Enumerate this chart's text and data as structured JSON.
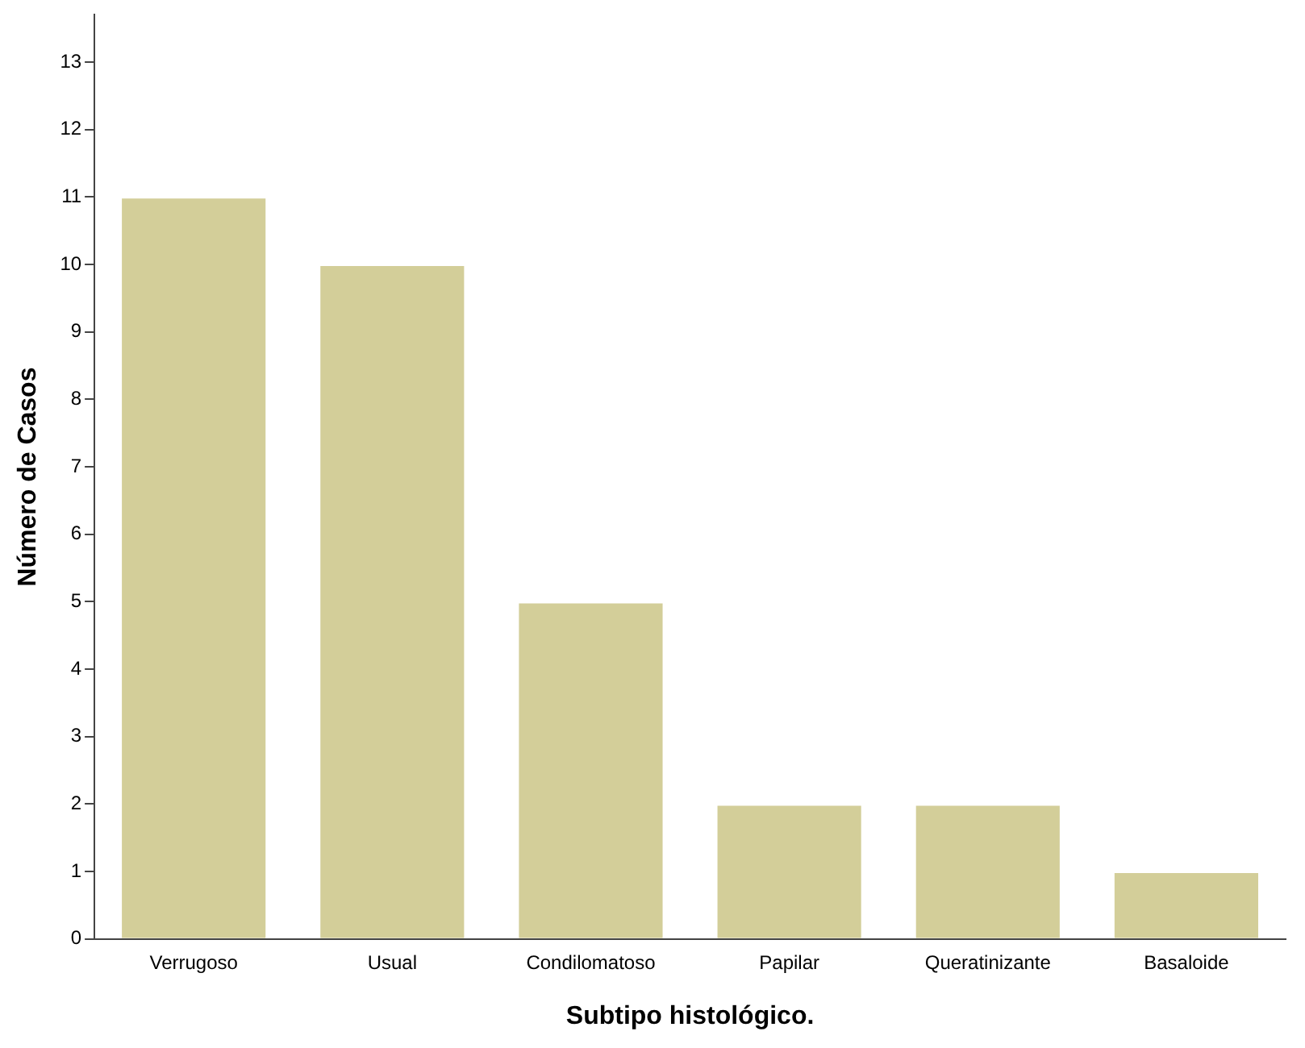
{
  "chart_data": {
    "type": "bar",
    "xlabel": "Subtipo histológico.",
    "ylabel": "Número de Casos",
    "categories": [
      "Verrugoso",
      "Usual",
      "Condilomatoso",
      "Papilar",
      "Queratinizante",
      "Basaloide"
    ],
    "values": [
      11,
      10,
      5,
      2,
      2,
      1
    ],
    "color": "#d3ce99",
    "ylim": [
      0,
      13.7
    ],
    "yticks": [
      0,
      1,
      2,
      3,
      4,
      5,
      6,
      7,
      8,
      9,
      10,
      11,
      12,
      13
    ],
    "grid": false,
    "legend": false
  }
}
